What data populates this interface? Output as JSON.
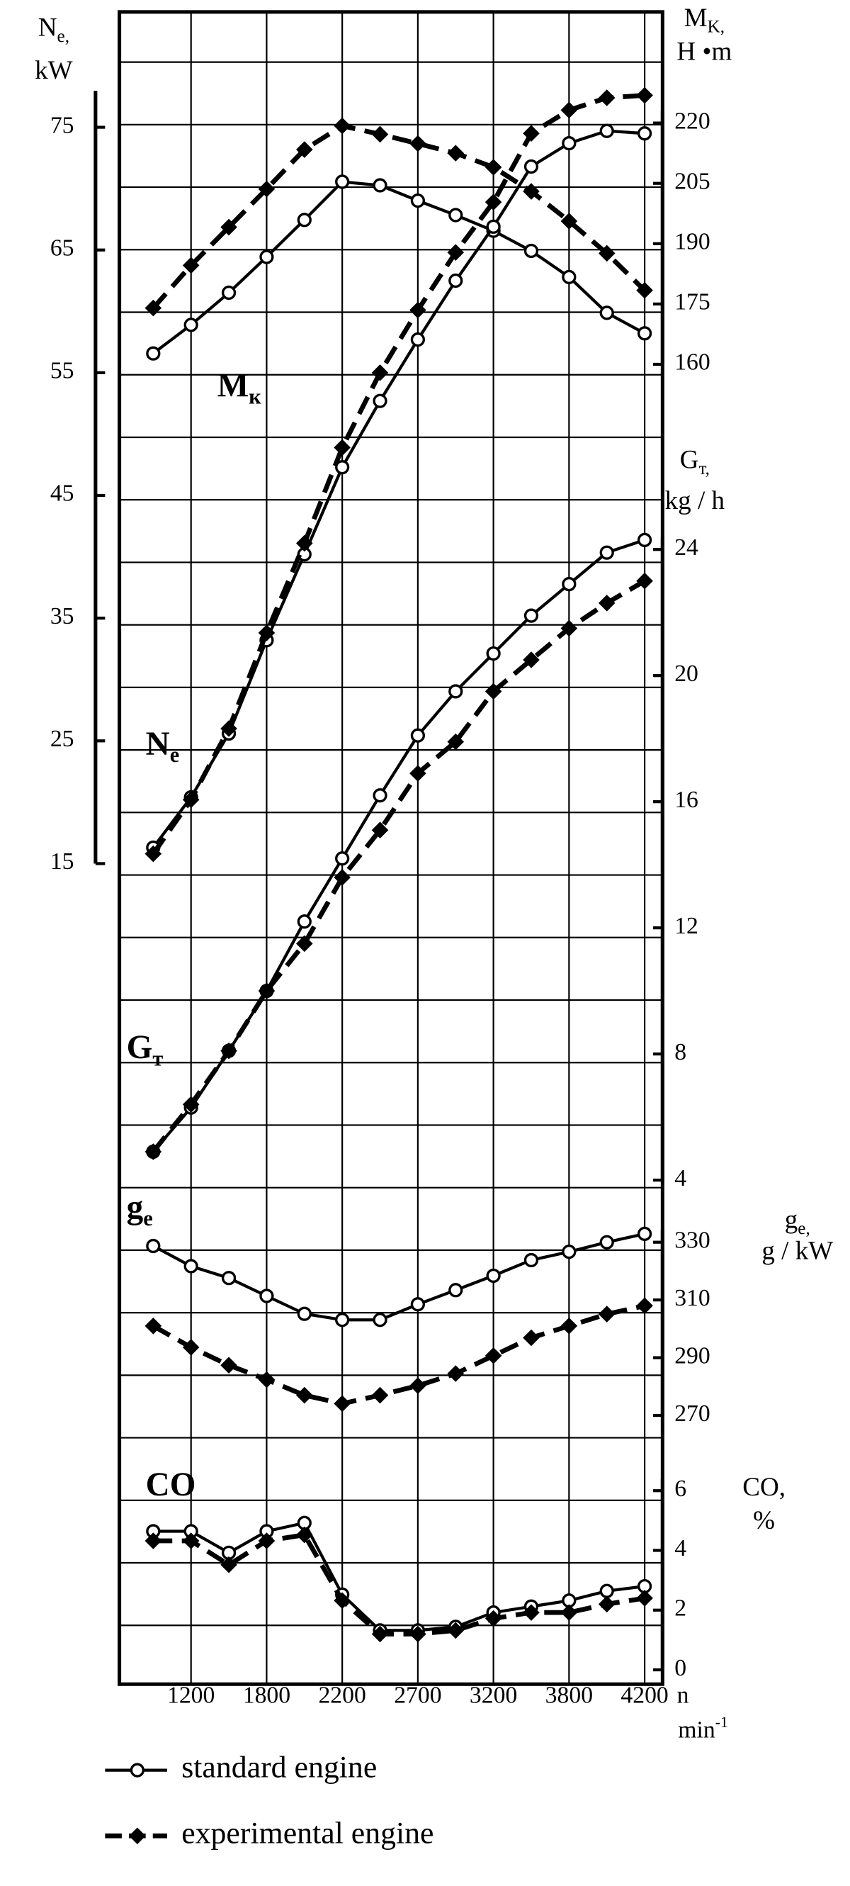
{
  "chart_data": {
    "type": "line",
    "categories": [
      null,
      "1200",
      null,
      "1800",
      null,
      "2200",
      null,
      "2700",
      null,
      "3200",
      null,
      "3800",
      null,
      "4200"
    ],
    "x_label": "n",
    "x_unit": {
      "text": "min",
      "sup": "-1"
    },
    "grid": true,
    "legend": [
      {
        "name": "standard engine",
        "marker": "open-circle",
        "color": "#000000",
        "dashed": false
      },
      {
        "name": "experimental engine",
        "marker": "filled-diamond",
        "color": "#000000",
        "dashed": true
      }
    ],
    "panels": [
      {
        "axis_title": {
          "symbol": "M",
          "sub": "K,"
        },
        "axis_unit": "H •m",
        "curve_label": {
          "symbol": "M",
          "sub": "к"
        },
        "ylim": [
          160,
          220
        ],
        "yticks": [
          160,
          175,
          190,
          205,
          220
        ],
        "series": [
          {
            "values": [
              162.7,
              169.8,
              177.8,
              186.7,
              195.9,
              205.4,
              204.5,
              200.7,
              197.1,
              193.2,
              188.2,
              181.7,
              172.8,
              167.7
            ]
          },
          {
            "values": [
              174,
              184.6,
              194.1,
              203.6,
              213.4,
              219.3,
              217.2,
              214.9,
              212.5,
              209,
              203,
              195.6,
              187.6,
              178.4
            ]
          }
        ]
      },
      {
        "axis_title": {
          "symbol": "N",
          "sub": "e,"
        },
        "axis_unit": "kW",
        "curve_label": {
          "symbol": "N",
          "sub": "e"
        },
        "ylim": [
          15,
          77
        ],
        "yticks": [
          15,
          25,
          35,
          45,
          55,
          65,
          75
        ],
        "series": [
          {
            "values": [
              16.3,
              20.4,
              25.6,
              33.2,
              40.2,
              47.3,
              52.7,
              57.7,
              62.5,
              66.9,
              71.8,
              73.7,
              74.7,
              74.5
            ]
          },
          {
            "values": [
              15.8,
              20.2,
              26.0,
              33.8,
              41.1,
              48.9,
              55.0,
              60.1,
              64.8,
              68.9,
              74.5,
              76.4,
              77.4,
              77.6
            ]
          }
        ]
      },
      {
        "axis_title": {
          "symbol": "G",
          "sub": "т,"
        },
        "axis_unit": "kg / h",
        "curve_label": {
          "symbol": "G",
          "sub": "т"
        },
        "ylim": [
          4,
          24
        ],
        "yticks": [
          4,
          8,
          12,
          16,
          20,
          24
        ],
        "series": [
          {
            "values": [
              4.9,
              6.3,
              8.1,
              10.0,
              12.2,
              14.2,
              16.2,
              18.1,
              19.5,
              20.7,
              21.9,
              22.9,
              23.9,
              24.3
            ]
          },
          {
            "values": [
              4.9,
              6.4,
              8.1,
              10.0,
              11.5,
              13.6,
              15.1,
              16.9,
              17.9,
              19.5,
              20.5,
              21.5,
              22.3,
              23.0
            ]
          }
        ]
      },
      {
        "axis_title": {
          "symbol": "g",
          "sub": "e,"
        },
        "axis_unit": "g / kW",
        "curve_label": {
          "symbol": "g",
          "sub": "e"
        },
        "ylim": [
          270,
          330
        ],
        "yticks": [
          270,
          290,
          310,
          330
        ],
        "series": [
          {
            "values": [
              328.7,
              321.7,
              317.6,
              311.4,
              305.2,
              303.1,
              303.1,
              308.5,
              313.4,
              318.4,
              323.8,
              326.7,
              330,
              332.9
            ]
          },
          {
            "values": [
              301,
              293.6,
              287.4,
              282.4,
              277,
              274.1,
              277,
              280.3,
              284.5,
              290.7,
              296.9,
              301,
              305.1,
              308
            ]
          }
        ]
      },
      {
        "axis_title": {
          "symbol": "CO,"
        },
        "axis_unit": "%",
        "curve_label": {
          "symbol": "CO"
        },
        "ylim": [
          0,
          6
        ],
        "yticks": [
          0,
          2,
          4,
          6
        ],
        "series": [
          {
            "values": [
              4.64,
              4.64,
              3.92,
              4.64,
              4.92,
              2.52,
              1.32,
              1.32,
              1.44,
              1.92,
              2.12,
              2.32,
              2.64,
              2.8
            ]
          },
          {
            "values": [
              4.32,
              4.32,
              3.52,
              4.32,
              4.52,
              2.32,
              1.2,
              1.2,
              1.32,
              1.72,
              1.92,
              1.92,
              2.2,
              2.4
            ]
          }
        ]
      }
    ]
  }
}
